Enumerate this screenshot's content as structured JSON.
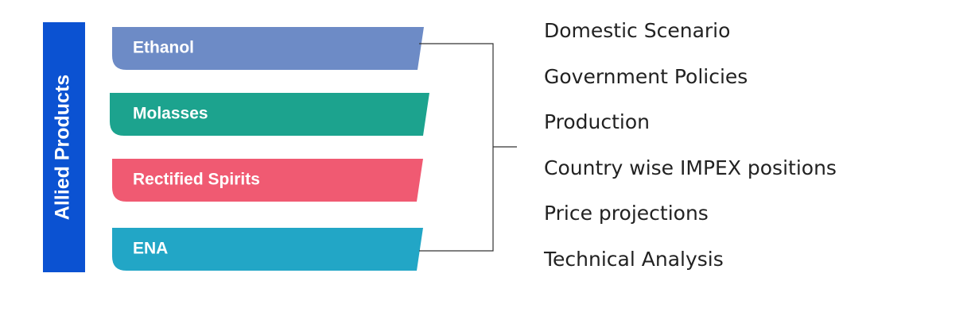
{
  "sidebar": {
    "label": "Allied Products"
  },
  "products": [
    "Ethanol",
    "Molasses",
    "Rectified Spirits",
    "ENA"
  ],
  "topics": [
    "Domestic Scenario",
    "Government Policies",
    "Production",
    "Country wise IMPEX positions",
    "Price projections",
    "Technical Analysis"
  ]
}
